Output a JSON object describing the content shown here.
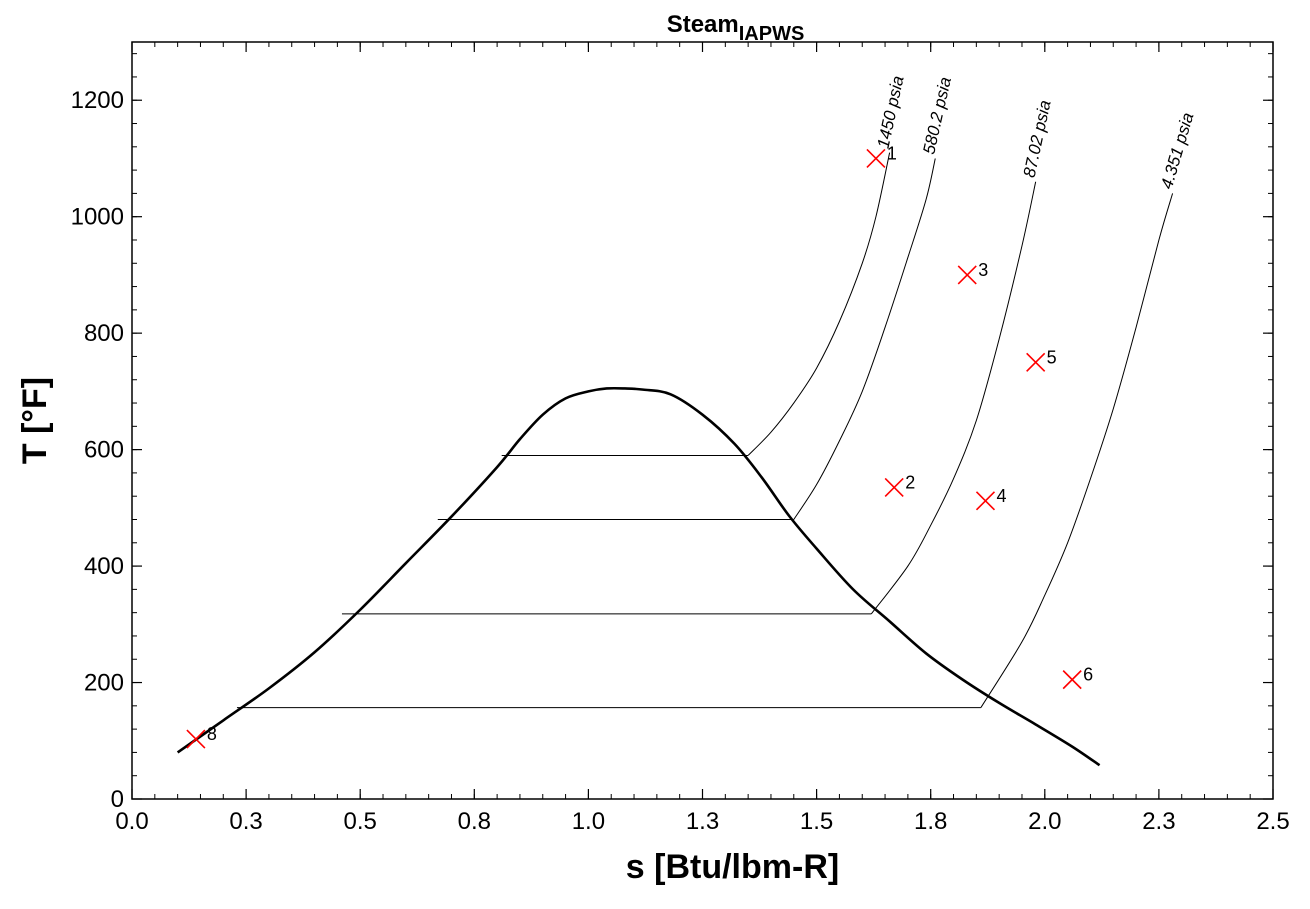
{
  "chart_data": {
    "type": "line",
    "title": "Steam",
    "title_subscript": "IAPWS",
    "xlabel": "s [Btu/lbm-R]",
    "ylabel": "T [°F]",
    "xlim": [
      0,
      2.5
    ],
    "ylim": [
      0,
      1300
    ],
    "x_ticks": [
      0,
      0.25,
      0.5,
      0.75,
      1.0,
      1.25,
      1.5,
      1.75,
      2.0,
      2.25,
      2.5
    ],
    "x_tick_labels": [
      "0.0",
      "0.3",
      "0.5",
      "0.8",
      "1.0",
      "1.3",
      "1.5",
      "1.8",
      "2.0",
      "2.3",
      "2.5"
    ],
    "y_ticks": [
      0,
      200,
      400,
      600,
      800,
      1000,
      1200
    ],
    "y_tick_labels": [
      "0",
      "200",
      "400",
      "600",
      "800",
      "1000",
      "1200"
    ],
    "grid": false,
    "series": [
      {
        "role": "saturation-dome",
        "x": [
          0.1,
          0.2,
          0.3,
          0.4,
          0.5,
          0.6,
          0.7,
          0.8,
          0.85,
          0.9,
          0.95,
          1.0,
          1.04,
          1.08,
          1.12,
          1.18,
          1.25,
          1.32,
          1.38,
          1.44,
          1.5,
          1.58,
          1.66,
          1.74,
          1.82,
          1.9,
          1.98,
          2.06,
          2.12
        ],
        "y": [
          80,
          135,
          190,
          252,
          325,
          405,
          485,
          570,
          618,
          660,
          688,
          700,
          705,
          705,
          703,
          695,
          660,
          610,
          552,
          486,
          430,
          360,
          305,
          250,
          205,
          165,
          128,
          90,
          58
        ]
      },
      {
        "name": "1450 psia",
        "x": [
          0.81,
          1.35,
          1.4,
          1.45,
          1.5,
          1.55,
          1.6,
          1.63,
          1.66
        ],
        "y": [
          590,
          590,
          630,
          680,
          740,
          820,
          920,
          1000,
          1110
        ]
      },
      {
        "name": "580.2 psia",
        "x": [
          0.67,
          1.45,
          1.5,
          1.55,
          1.6,
          1.65,
          1.7,
          1.74,
          1.76
        ],
        "y": [
          480,
          480,
          540,
          615,
          700,
          810,
          930,
          1030,
          1100
        ]
      },
      {
        "name": "87.02 psia",
        "x": [
          0.46,
          1.62,
          1.7,
          1.75,
          1.8,
          1.85,
          1.9,
          1.95,
          1.98
        ],
        "y": [
          318,
          318,
          400,
          470,
          550,
          650,
          790,
          950,
          1060
        ]
      },
      {
        "name": "4.351 psia",
        "x": [
          0.23,
          1.86,
          1.95,
          2.0,
          2.05,
          2.1,
          2.15,
          2.2,
          2.25,
          2.28
        ],
        "y": [
          157,
          157,
          270,
          350,
          440,
          550,
          670,
          810,
          960,
          1040
        ]
      }
    ],
    "state_points": [
      {
        "label": "1",
        "s": 1.63,
        "T": 1100
      },
      {
        "label": "2",
        "s": 1.67,
        "T": 535
      },
      {
        "label": "3",
        "s": 1.83,
        "T": 900
      },
      {
        "label": "4",
        "s": 1.87,
        "T": 512
      },
      {
        "label": "5",
        "s": 1.98,
        "T": 750
      },
      {
        "label": "6",
        "s": 2.06,
        "T": 205
      },
      {
        "label": "8",
        "s": 0.14,
        "T": 103
      }
    ],
    "colors": {
      "state_marker": "#ff0000",
      "lines": "#000000"
    }
  }
}
